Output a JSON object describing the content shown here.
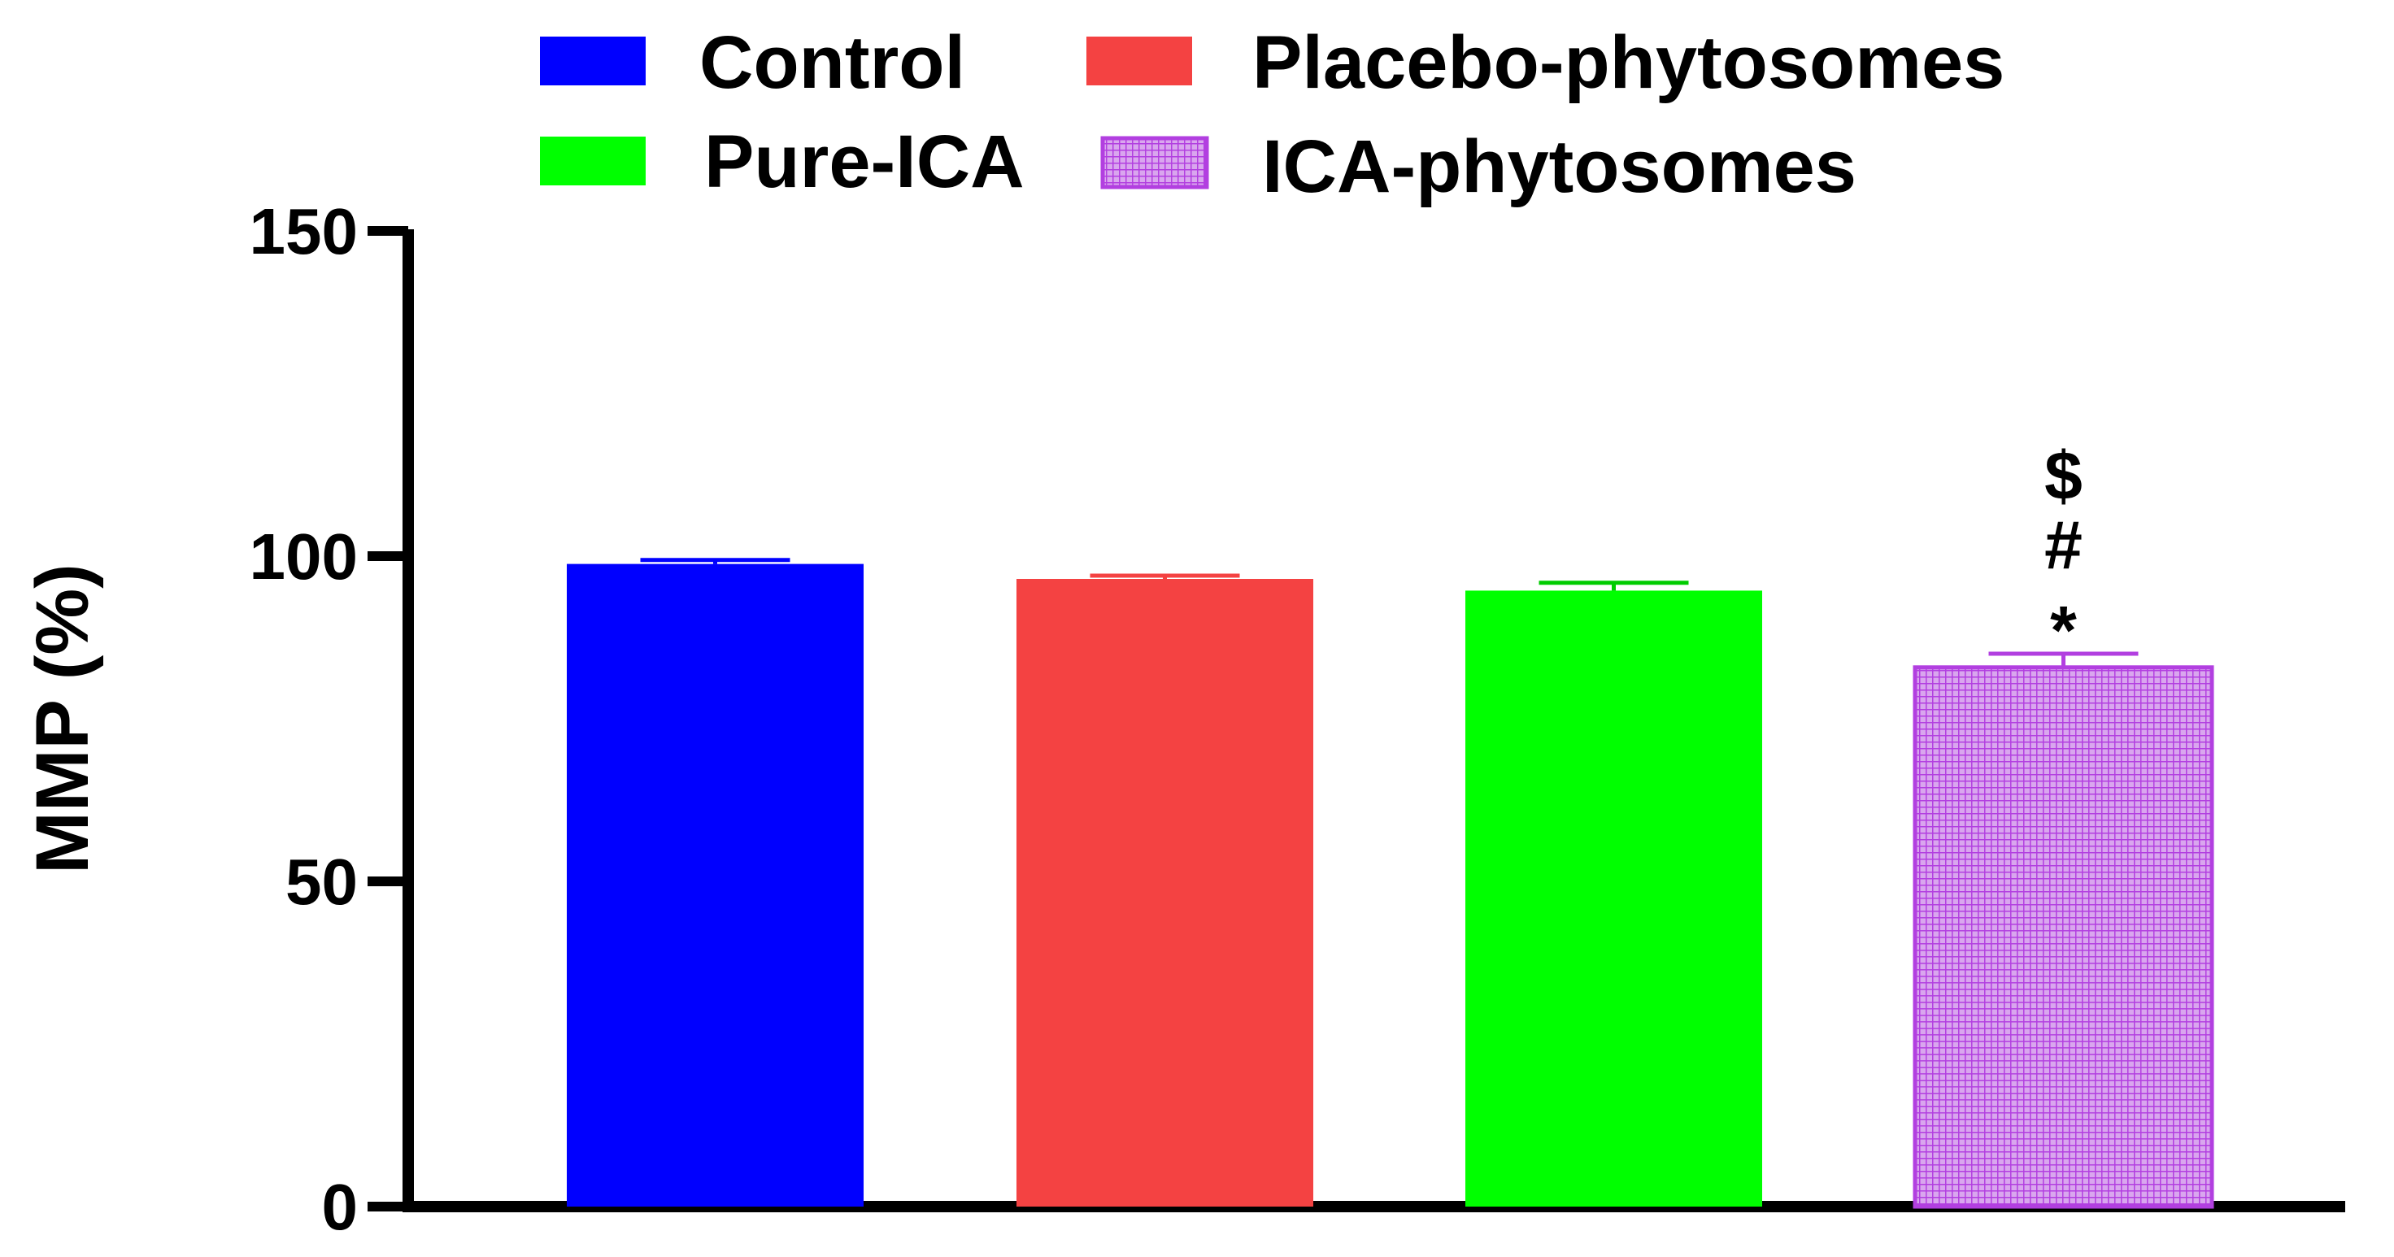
{
  "chart_data": {
    "type": "bar",
    "title": "",
    "xlabel": "",
    "ylabel": "MMP (%)",
    "ylim": [
      0,
      150
    ],
    "yticks": [
      0,
      50,
      100,
      150
    ],
    "ytick_labels": [
      "0",
      "50",
      "100",
      "150"
    ],
    "categories": [
      "Control",
      "Placebo-phytosomes",
      "Pure-ICA",
      "ICA-phytosomes"
    ],
    "values": [
      98.8,
      96.5,
      94.7,
      82.9
    ],
    "errors": [
      0.6,
      0.5,
      1.2,
      2.1
    ],
    "legend_position": "top",
    "legend": [
      {
        "label": "Control",
        "color": "#0000ff",
        "pattern": "solid"
      },
      {
        "label": "Placebo-phytosomes",
        "color": "#f44242",
        "pattern": "solid"
      },
      {
        "label": "Pure-ICA",
        "color": "#00ff00",
        "pattern": "solid"
      },
      {
        "label": "ICA-phytosomes",
        "color": "#b44fe3",
        "pattern": "mesh"
      }
    ],
    "annotations": [
      {
        "category": "ICA-phytosomes",
        "marks": [
          "$",
          "#",
          "*"
        ]
      }
    ]
  }
}
